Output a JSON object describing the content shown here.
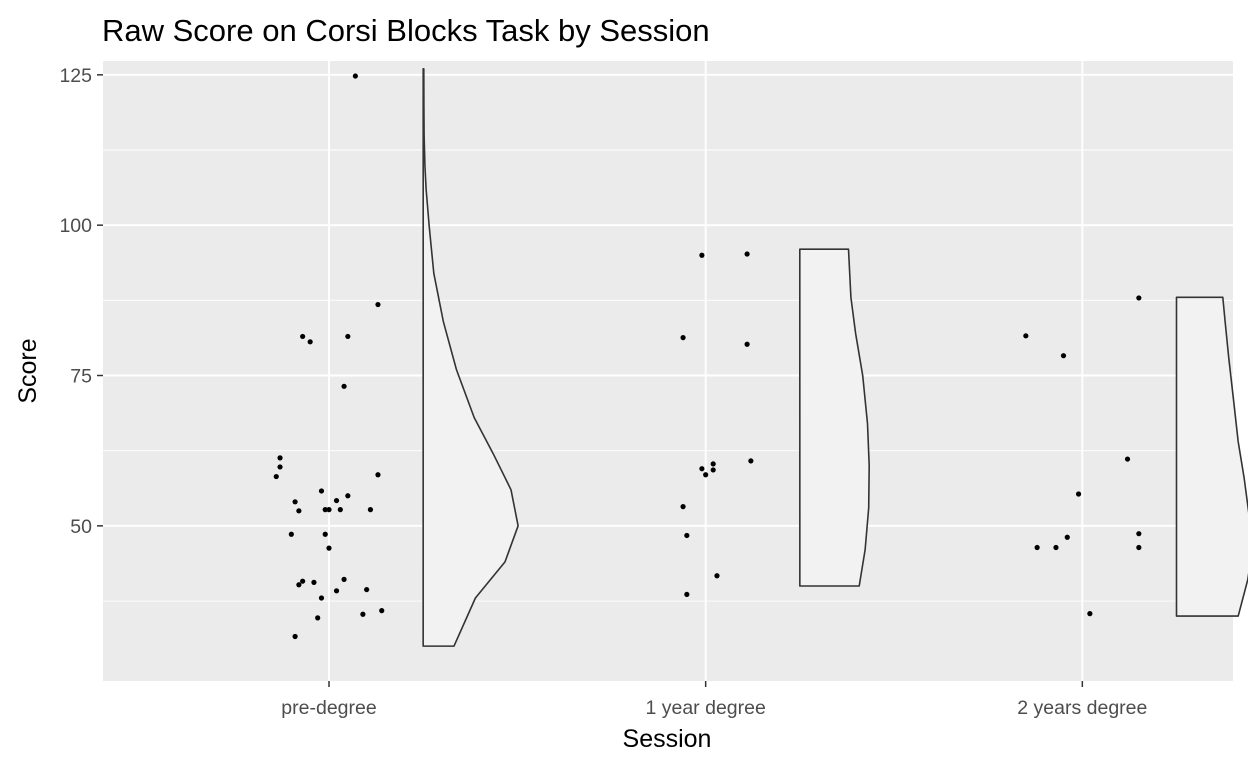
{
  "chart_data": {
    "type": "scatter",
    "subtype": "raincloud (jittered points + half violin)",
    "title": "Raw Score on Corsi Blocks Task by Session",
    "xlabel": "Session",
    "ylabel": "Score",
    "categories": [
      "pre-degree",
      "1 year degree",
      "2 years degree"
    ],
    "y_ticks": [
      50,
      75,
      100,
      125
    ],
    "ylim": [
      24.2,
      127.3
    ],
    "grid": true,
    "legend": "none",
    "colors": {
      "panel": "#ebebeb",
      "grid": "#ffffff",
      "point": "#000000",
      "violin_fill": "#f2f2f2",
      "violin_stroke": "#333333",
      "tick_label": "#4d4d4d"
    },
    "series": [
      {
        "category": "pre-degree",
        "points": [
          {
            "offset": -0.14,
            "y": 58.2
          },
          {
            "offset": -0.13,
            "y": 59.8
          },
          {
            "offset": -0.13,
            "y": 61.3
          },
          {
            "offset": -0.07,
            "y": 81.5
          },
          {
            "offset": -0.05,
            "y": 80.6
          },
          {
            "offset": 0.05,
            "y": 81.5
          },
          {
            "offset": 0.04,
            "y": 73.2
          },
          {
            "offset": 0.13,
            "y": 86.8
          },
          {
            "offset": 0.07,
            "y": 124.8
          },
          {
            "offset": -0.09,
            "y": 54.0
          },
          {
            "offset": -0.08,
            "y": 52.5
          },
          {
            "offset": -0.02,
            "y": 55.8
          },
          {
            "offset": -0.01,
            "y": 52.7
          },
          {
            "offset": 0.0,
            "y": 52.7
          },
          {
            "offset": 0.02,
            "y": 54.2
          },
          {
            "offset": 0.05,
            "y": 55.0
          },
          {
            "offset": 0.03,
            "y": 52.7
          },
          {
            "offset": 0.11,
            "y": 52.7
          },
          {
            "offset": 0.13,
            "y": 58.5
          },
          {
            "offset": -0.1,
            "y": 48.6
          },
          {
            "offset": -0.01,
            "y": 48.6
          },
          {
            "offset": 0.0,
            "y": 46.3
          },
          {
            "offset": -0.07,
            "y": 40.8
          },
          {
            "offset": -0.04,
            "y": 40.6
          },
          {
            "offset": -0.08,
            "y": 40.2
          },
          {
            "offset": -0.02,
            "y": 38.0
          },
          {
            "offset": 0.02,
            "y": 39.2
          },
          {
            "offset": 0.04,
            "y": 41.1
          },
          {
            "offset": 0.1,
            "y": 39.4
          },
          {
            "offset": -0.03,
            "y": 34.7
          },
          {
            "offset": 0.09,
            "y": 35.3
          },
          {
            "offset": 0.14,
            "y": 35.9
          },
          {
            "offset": -0.09,
            "y": 31.6
          }
        ],
        "violin": [
          [
            30,
            0.26
          ],
          [
            38,
            0.44
          ],
          [
            44,
            0.69
          ],
          [
            50,
            0.8
          ],
          [
            56,
            0.74
          ],
          [
            62,
            0.59
          ],
          [
            68,
            0.43
          ],
          [
            76,
            0.28
          ],
          [
            84,
            0.17
          ],
          [
            92,
            0.09
          ],
          [
            100,
            0.05
          ],
          [
            106,
            0.025
          ],
          [
            110,
            0.015
          ],
          [
            115,
            0.008
          ],
          [
            120,
            0.006
          ],
          [
            126,
            0.005
          ]
        ],
        "violin_cap": 0.03
      },
      {
        "category": "1 year degree",
        "points": [
          {
            "offset": -0.06,
            "y": 81.3
          },
          {
            "offset": -0.01,
            "y": 95.0
          },
          {
            "offset": 0.11,
            "y": 95.2
          },
          {
            "offset": 0.11,
            "y": 80.2
          },
          {
            "offset": 0.12,
            "y": 60.8
          },
          {
            "offset": -0.01,
            "y": 59.5
          },
          {
            "offset": 0.0,
            "y": 58.5
          },
          {
            "offset": 0.02,
            "y": 59.3
          },
          {
            "offset": 0.02,
            "y": 60.3
          },
          {
            "offset": -0.06,
            "y": 53.2
          },
          {
            "offset": -0.05,
            "y": 48.4
          },
          {
            "offset": 0.03,
            "y": 41.7
          },
          {
            "offset": -0.05,
            "y": 38.6
          }
        ],
        "violin": [
          [
            40,
            0.5
          ],
          [
            46,
            0.55
          ],
          [
            53,
            0.58
          ],
          [
            60,
            0.585
          ],
          [
            67,
            0.57
          ],
          [
            75,
            0.53
          ],
          [
            82,
            0.47
          ],
          [
            88,
            0.43
          ],
          [
            96,
            0.41
          ]
        ],
        "violin_cap": 0.25
      },
      {
        "category": "2 years degree",
        "points": [
          {
            "offset": -0.15,
            "y": 81.6
          },
          {
            "offset": -0.05,
            "y": 78.3
          },
          {
            "offset": 0.15,
            "y": 87.9
          },
          {
            "offset": 0.12,
            "y": 61.1
          },
          {
            "offset": -0.01,
            "y": 55.3
          },
          {
            "offset": 0.15,
            "y": 48.7
          },
          {
            "offset": 0.15,
            "y": 46.4
          },
          {
            "offset": -0.04,
            "y": 48.1
          },
          {
            "offset": -0.07,
            "y": 46.4
          },
          {
            "offset": -0.12,
            "y": 46.4
          },
          {
            "offset": 0.02,
            "y": 35.4
          }
        ],
        "violin": [
          [
            35,
            0.52
          ],
          [
            41,
            0.6
          ],
          [
            46,
            0.64
          ],
          [
            52,
            0.61
          ],
          [
            58,
            0.57
          ],
          [
            64,
            0.52
          ],
          [
            71,
            0.48
          ],
          [
            78,
            0.44
          ],
          [
            84,
            0.41
          ],
          [
            88,
            0.39
          ]
        ],
        "violin_cap": 0.25
      }
    ]
  }
}
